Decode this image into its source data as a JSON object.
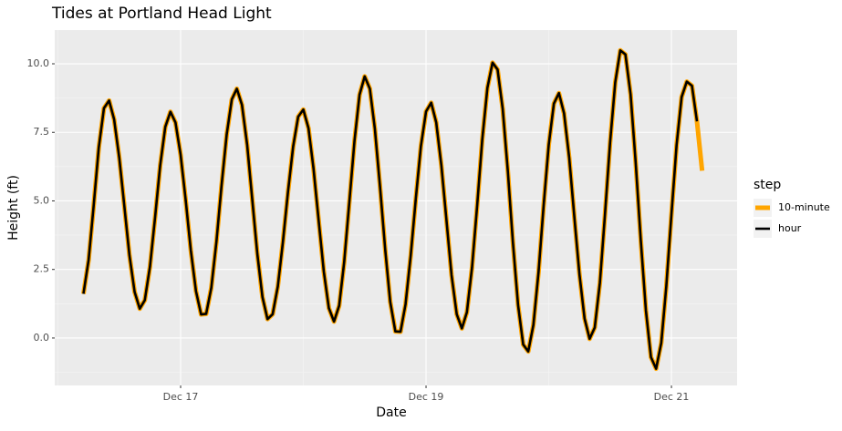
{
  "chart_data": {
    "type": "line",
    "title": "Tides at Portland Head Light",
    "x_label": "Date",
    "y_label": "Height (ft)",
    "legend_title": "step",
    "x": [
      16.208,
      16.25,
      16.292,
      16.333,
      16.375,
      16.417,
      16.458,
      16.5,
      16.542,
      16.583,
      16.625,
      16.667,
      16.708,
      16.75,
      16.792,
      16.833,
      16.875,
      16.917,
      16.958,
      17,
      17.042,
      17.083,
      17.125,
      17.167,
      17.208,
      17.25,
      17.292,
      17.333,
      17.375,
      17.417,
      17.458,
      17.5,
      17.542,
      17.583,
      17.625,
      17.667,
      17.708,
      17.75,
      17.792,
      17.833,
      17.875,
      17.917,
      17.958,
      18,
      18.042,
      18.083,
      18.125,
      18.167,
      18.208,
      18.25,
      18.292,
      18.333,
      18.375,
      18.417,
      18.458,
      18.5,
      18.542,
      18.583,
      18.625,
      18.667,
      18.708,
      18.75,
      18.792,
      18.833,
      18.875,
      18.917,
      18.958,
      19,
      19.042,
      19.083,
      19.125,
      19.167,
      19.208,
      19.25,
      19.292,
      19.333,
      19.375,
      19.417,
      19.458,
      19.5,
      19.542,
      19.583,
      19.625,
      19.667,
      19.708,
      19.75,
      19.792,
      19.833,
      19.875,
      19.917,
      19.958,
      20,
      20.042,
      20.083,
      20.125,
      20.167,
      20.208,
      20.25,
      20.292,
      20.333,
      20.375,
      20.417,
      20.458,
      20.5,
      20.542,
      20.583,
      20.625,
      20.667,
      20.708,
      20.75,
      20.792,
      20.833,
      20.875,
      20.917,
      20.958,
      21,
      21.042,
      21.083,
      21.125,
      21.167,
      21.208,
      21.25
    ],
    "series": [
      {
        "name": "10-minute",
        "color": "#ffa500",
        "values": [
          1.61,
          2.84,
          4.86,
          6.95,
          8.38,
          8.66,
          7.97,
          6.57,
          4.78,
          3.01,
          1.68,
          1.07,
          1.38,
          2.6,
          4.41,
          6.28,
          7.7,
          8.25,
          7.86,
          6.68,
          5.0,
          3.2,
          1.71,
          0.86,
          0.88,
          1.83,
          3.52,
          5.54,
          7.41,
          8.7,
          9.09,
          8.5,
          7.05,
          5.09,
          3.07,
          1.49,
          0.69,
          0.87,
          1.88,
          3.48,
          5.33,
          6.98,
          8.07,
          8.33,
          7.65,
          6.18,
          4.28,
          2.42,
          1.09,
          0.6,
          1.18,
          2.77,
          4.96,
          7.19,
          8.87,
          9.54,
          9.09,
          7.63,
          5.52,
          3.24,
          1.32,
          0.24,
          0.23,
          1.23,
          3.0,
          5.1,
          6.99,
          8.26,
          8.58,
          7.86,
          6.29,
          4.27,
          2.29,
          0.87,
          0.35,
          0.94,
          2.58,
          4.85,
          7.23,
          9.12,
          10.04,
          9.79,
          8.35,
          6.06,
          3.49,
          1.2,
          -0.24,
          -0.49,
          0.48,
          2.41,
          4.81,
          7.05,
          8.55,
          8.93,
          8.19,
          6.57,
          4.45,
          2.33,
          0.71,
          -0.03,
          0.38,
          2.02,
          4.48,
          7.13,
          9.32,
          10.49,
          10.34,
          8.88,
          6.44,
          3.57,
          1.0,
          -0.7,
          -1.12,
          -0.18,
          1.88,
          4.51,
          7.04,
          8.79,
          9.35,
          9.2,
          7.9,
          6.1
        ]
      },
      {
        "name": "hour",
        "color": "#000000",
        "values": [
          1.61,
          2.84,
          4.86,
          6.95,
          8.38,
          8.66,
          7.97,
          6.57,
          4.78,
          3.01,
          1.68,
          1.07,
          1.38,
          2.6,
          4.41,
          6.28,
          7.7,
          8.25,
          7.86,
          6.68,
          5.0,
          3.2,
          1.71,
          0.86,
          0.88,
          1.83,
          3.52,
          5.54,
          7.41,
          8.7,
          9.09,
          8.5,
          7.05,
          5.09,
          3.07,
          1.49,
          0.69,
          0.87,
          1.88,
          3.48,
          5.33,
          6.98,
          8.07,
          8.33,
          7.65,
          6.18,
          4.28,
          2.42,
          1.09,
          0.6,
          1.18,
          2.77,
          4.96,
          7.19,
          8.87,
          9.54,
          9.09,
          7.63,
          5.52,
          3.24,
          1.32,
          0.24,
          0.23,
          1.23,
          3.0,
          5.1,
          6.99,
          8.26,
          8.58,
          7.86,
          6.29,
          4.27,
          2.29,
          0.87,
          0.35,
          0.94,
          2.58,
          4.85,
          7.23,
          9.12,
          10.04,
          9.79,
          8.35,
          6.06,
          3.49,
          1.2,
          -0.24,
          -0.49,
          0.48,
          2.41,
          4.81,
          7.05,
          8.55,
          8.93,
          8.19,
          6.57,
          4.45,
          2.33,
          0.71,
          -0.03,
          0.38,
          2.02,
          4.48,
          7.13,
          9.32,
          10.49,
          10.34,
          8.88,
          6.44,
          3.57,
          1.0,
          -0.7,
          -1.12,
          -0.18,
          1.88,
          4.51,
          7.04,
          8.79,
          9.35,
          9.2,
          7.9,
          null
        ]
      }
    ],
    "xlim": [
      15.974,
      21.535
    ],
    "ylim": [
      -1.73,
      11.23
    ],
    "xticks": [
      {
        "value": 17,
        "label": "Dec 17"
      },
      {
        "value": 19,
        "label": "Dec 19"
      },
      {
        "value": 21,
        "label": "Dec 21"
      }
    ],
    "yticks": [
      {
        "value": 0,
        "label": "0.0"
      },
      {
        "value": 2.5,
        "label": "2.5"
      },
      {
        "value": 5,
        "label": "5.0"
      },
      {
        "value": 7.5,
        "label": "7.5"
      },
      {
        "value": 10,
        "label": "10.0"
      }
    ],
    "grid": true,
    "legend": "right"
  }
}
